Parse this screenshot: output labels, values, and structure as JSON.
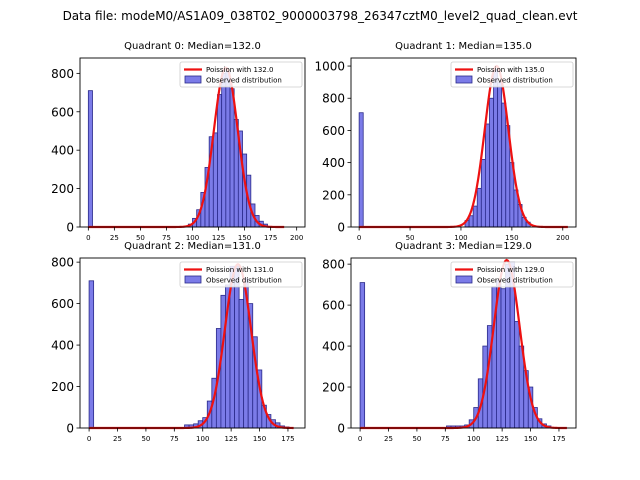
{
  "figure": {
    "suptitle": "Data file: modeM0/AS1A09_038T02_9000003798_26347cztM0_level2_quad_clean.evt"
  },
  "colors": {
    "bar_fill": "#7b7be8",
    "bar_edge": "#2a2a8a",
    "poisson_line": "#ee1111",
    "axes": "#000000"
  },
  "chart_data": [
    {
      "type": "bar",
      "title": "Quadrant 0: Median=132.0",
      "bin_width": 4,
      "xlim": [
        -8,
        208
      ],
      "ylim": [
        0,
        880
      ],
      "xticks": [
        0,
        25,
        50,
        75,
        100,
        125,
        150,
        175,
        200
      ],
      "yticks": [
        0,
        200,
        400,
        600,
        800
      ],
      "zero_bin": 710,
      "bins": [
        [
          96,
          15
        ],
        [
          100,
          45
        ],
        [
          104,
          90
        ],
        [
          108,
          180
        ],
        [
          112,
          310
        ],
        [
          116,
          470
        ],
        [
          120,
          490
        ],
        [
          124,
          690
        ],
        [
          128,
          800
        ],
        [
          132,
          810
        ],
        [
          136,
          720
        ],
        [
          140,
          560
        ],
        [
          144,
          500
        ],
        [
          148,
          380
        ],
        [
          152,
          270
        ],
        [
          156,
          120
        ],
        [
          160,
          60
        ],
        [
          164,
          30
        ],
        [
          168,
          15
        ]
      ],
      "poisson_mean": 132.0,
      "poisson_peak": 830,
      "curve_range": [
        0,
        188
      ],
      "legend": [
        "Poission with 132.0",
        "Observed distribution"
      ]
    },
    {
      "type": "bar",
      "title": "Quadrant 1: Median=135.0",
      "bin_width": 4,
      "xlim": [
        -8,
        213
      ],
      "ylim": [
        0,
        1050
      ],
      "xticks": [
        0,
        50,
        100,
        150,
        200
      ],
      "yticks": [
        0,
        200,
        400,
        600,
        800,
        1000
      ],
      "zero_bin": 710,
      "bins": [
        [
          104,
          40
        ],
        [
          108,
          70
        ],
        [
          112,
          130
        ],
        [
          116,
          240
        ],
        [
          120,
          420
        ],
        [
          124,
          640
        ],
        [
          128,
          800
        ],
        [
          132,
          980
        ],
        [
          136,
          900
        ],
        [
          140,
          770
        ],
        [
          144,
          630
        ],
        [
          148,
          400
        ],
        [
          152,
          230
        ],
        [
          156,
          140
        ],
        [
          160,
          60
        ],
        [
          164,
          30
        ]
      ],
      "poisson_mean": 135.0,
      "poisson_peak": 1000,
      "curve_range": [
        0,
        205
      ],
      "legend": [
        "Poission with 135.0",
        "Observed distribution"
      ]
    },
    {
      "type": "bar",
      "title": "Quadrant 2: Median=131.0",
      "bin_width": 4,
      "xlim": [
        -8,
        190
      ],
      "ylim": [
        0,
        820
      ],
      "xticks": [
        0,
        25,
        50,
        75,
        100,
        125,
        150,
        175
      ],
      "yticks": [
        0,
        200,
        400,
        600,
        800
      ],
      "zero_bin": 710,
      "bins": [
        [
          84,
          15
        ],
        [
          88,
          15
        ],
        [
          92,
          20
        ],
        [
          96,
          35
        ],
        [
          100,
          50
        ],
        [
          104,
          130
        ],
        [
          108,
          240
        ],
        [
          112,
          480
        ],
        [
          116,
          640
        ],
        [
          120,
          690
        ],
        [
          124,
          780
        ],
        [
          128,
          780
        ],
        [
          132,
          620
        ],
        [
          136,
          720
        ],
        [
          140,
          600
        ],
        [
          144,
          440
        ],
        [
          148,
          280
        ],
        [
          152,
          110
        ],
        [
          156,
          65
        ],
        [
          160,
          40
        ],
        [
          164,
          25
        ],
        [
          168,
          10
        ],
        [
          172,
          5
        ]
      ],
      "poisson_mean": 131.0,
      "poisson_peak": 790,
      "curve_range": [
        0,
        180
      ],
      "legend": [
        "Poission with 131.0",
        "Observed distribution"
      ]
    },
    {
      "type": "bar",
      "title": "Quadrant 3: Median=129.0",
      "bin_width": 4,
      "xlim": [
        -8,
        190
      ],
      "ylim": [
        0,
        830
      ],
      "xticks": [
        0,
        25,
        50,
        75,
        100,
        125,
        150,
        175
      ],
      "yticks": [
        0,
        200,
        400,
        600,
        800
      ],
      "zero_bin": 710,
      "bins": [
        [
          76,
          10
        ],
        [
          80,
          10
        ],
        [
          84,
          10
        ],
        [
          88,
          10
        ],
        [
          92,
          15
        ],
        [
          96,
          40
        ],
        [
          100,
          100
        ],
        [
          104,
          240
        ],
        [
          108,
          400
        ],
        [
          112,
          500
        ],
        [
          116,
          690
        ],
        [
          120,
          720
        ],
        [
          124,
          680
        ],
        [
          128,
          800
        ],
        [
          132,
          810
        ],
        [
          136,
          520
        ],
        [
          140,
          400
        ],
        [
          144,
          280
        ],
        [
          148,
          200
        ],
        [
          152,
          100
        ],
        [
          156,
          45
        ],
        [
          160,
          20
        ],
        [
          164,
          10
        ]
      ],
      "poisson_mean": 129.0,
      "poisson_peak": 820,
      "curve_range": [
        0,
        182
      ],
      "legend": [
        "Poission with 129.0",
        "Observed distribution"
      ]
    }
  ]
}
